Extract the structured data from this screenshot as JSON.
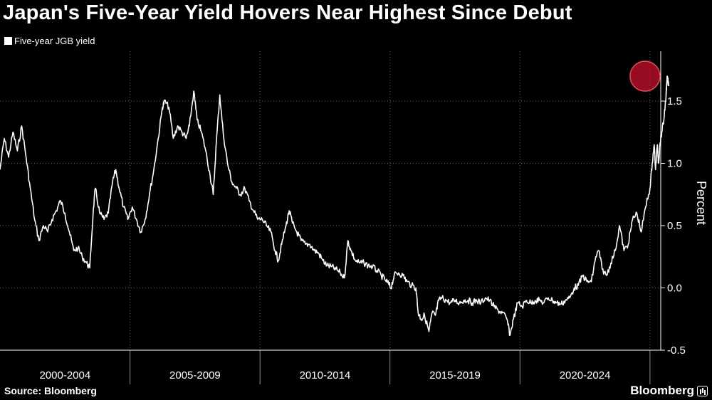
{
  "chart_data": {
    "type": "line",
    "title": "Japan's Five-Year Yield Hovers Near Highest Since Debut",
    "ylabel": "Percent",
    "xlabel": "",
    "ylim": [
      -0.5,
      1.9
    ],
    "xlim": [
      "2000-01-01",
      "2025-06-01"
    ],
    "yticks": [
      "1.5",
      "1.0",
      "0.5",
      "0.0",
      "-0.5"
    ],
    "ytick_values": [
      1.5,
      1.0,
      0.5,
      0.0,
      -0.5
    ],
    "categories": [
      "2000-2004",
      "2005-2009",
      "2010-2014",
      "2015-2019",
      "2020-2024"
    ],
    "category_ranges": [
      [
        "2000-01-01",
        "2005-01-01"
      ],
      [
        "2005-01-01",
        "2010-01-01"
      ],
      [
        "2010-01-01",
        "2015-01-01"
      ],
      [
        "2015-01-01",
        "2020-01-01"
      ],
      [
        "2020-01-01",
        "2025-01-01"
      ]
    ],
    "grid": true,
    "legend_position": "top-left",
    "highlight": {
      "x": "2025-04-01",
      "y": 1.7,
      "color": "#c8102e"
    },
    "series": [
      {
        "name": "Five-year JGB yield",
        "color": "#ffffff",
        "points": [
          [
            "2000-01-01",
            0.95
          ],
          [
            "2000-03-01",
            1.2
          ],
          [
            "2000-05-01",
            1.05
          ],
          [
            "2000-07-01",
            1.25
          ],
          [
            "2000-09-01",
            1.1
          ],
          [
            "2000-11-01",
            1.3
          ],
          [
            "2001-01-01",
            1.05
          ],
          [
            "2001-03-01",
            0.8
          ],
          [
            "2001-05-01",
            0.55
          ],
          [
            "2001-07-01",
            0.38
          ],
          [
            "2001-09-01",
            0.5
          ],
          [
            "2001-11-01",
            0.45
          ],
          [
            "2002-01-01",
            0.55
          ],
          [
            "2002-03-01",
            0.62
          ],
          [
            "2002-05-01",
            0.7
          ],
          [
            "2002-07-01",
            0.6
          ],
          [
            "2002-09-01",
            0.45
          ],
          [
            "2002-11-01",
            0.3
          ],
          [
            "2003-01-01",
            0.32
          ],
          [
            "2003-03-01",
            0.25
          ],
          [
            "2003-05-01",
            0.2
          ],
          [
            "2003-06-15",
            0.16
          ],
          [
            "2003-08-01",
            0.6
          ],
          [
            "2003-09-01",
            0.8
          ],
          [
            "2003-11-01",
            0.6
          ],
          [
            "2004-01-01",
            0.55
          ],
          [
            "2004-03-01",
            0.6
          ],
          [
            "2004-05-01",
            0.85
          ],
          [
            "2004-06-15",
            0.95
          ],
          [
            "2004-08-01",
            0.8
          ],
          [
            "2004-10-01",
            0.65
          ],
          [
            "2004-12-01",
            0.55
          ],
          [
            "2005-02-01",
            0.65
          ],
          [
            "2005-04-01",
            0.55
          ],
          [
            "2005-06-01",
            0.45
          ],
          [
            "2005-08-01",
            0.55
          ],
          [
            "2005-10-01",
            0.75
          ],
          [
            "2005-12-01",
            0.95
          ],
          [
            "2006-02-01",
            1.2
          ],
          [
            "2006-04-01",
            1.45
          ],
          [
            "2006-05-01",
            1.5
          ],
          [
            "2006-07-01",
            1.45
          ],
          [
            "2006-09-01",
            1.2
          ],
          [
            "2006-11-01",
            1.3
          ],
          [
            "2007-01-01",
            1.25
          ],
          [
            "2007-03-01",
            1.2
          ],
          [
            "2007-04-15",
            1.3
          ],
          [
            "2007-06-15",
            1.58
          ],
          [
            "2007-08-01",
            1.35
          ],
          [
            "2007-10-01",
            1.25
          ],
          [
            "2007-12-01",
            1.1
          ],
          [
            "2008-02-01",
            0.9
          ],
          [
            "2008-03-15",
            0.75
          ],
          [
            "2008-05-01",
            1.2
          ],
          [
            "2008-06-15",
            1.55
          ],
          [
            "2008-08-01",
            1.25
          ],
          [
            "2008-10-01",
            1.0
          ],
          [
            "2008-12-01",
            0.85
          ],
          [
            "2009-02-01",
            0.8
          ],
          [
            "2009-04-01",
            0.75
          ],
          [
            "2009-06-01",
            0.8
          ],
          [
            "2009-08-01",
            0.7
          ],
          [
            "2009-10-01",
            0.62
          ],
          [
            "2009-12-01",
            0.55
          ],
          [
            "2010-02-01",
            0.55
          ],
          [
            "2010-04-01",
            0.5
          ],
          [
            "2010-06-01",
            0.45
          ],
          [
            "2010-08-01",
            0.3
          ],
          [
            "2010-09-15",
            0.22
          ],
          [
            "2010-11-01",
            0.35
          ],
          [
            "2011-01-01",
            0.5
          ],
          [
            "2011-02-15",
            0.62
          ],
          [
            "2011-04-01",
            0.52
          ],
          [
            "2011-06-01",
            0.45
          ],
          [
            "2011-08-01",
            0.38
          ],
          [
            "2011-10-01",
            0.35
          ],
          [
            "2011-12-01",
            0.35
          ],
          [
            "2012-02-01",
            0.3
          ],
          [
            "2012-04-01",
            0.28
          ],
          [
            "2012-06-01",
            0.22
          ],
          [
            "2012-08-01",
            0.18
          ],
          [
            "2012-10-01",
            0.17
          ],
          [
            "2012-12-01",
            0.15
          ],
          [
            "2013-02-01",
            0.12
          ],
          [
            "2013-04-01",
            0.08
          ],
          [
            "2013-05-20",
            0.38
          ],
          [
            "2013-07-01",
            0.3
          ],
          [
            "2013-09-01",
            0.22
          ],
          [
            "2013-11-01",
            0.2
          ],
          [
            "2014-01-01",
            0.2
          ],
          [
            "2014-03-01",
            0.18
          ],
          [
            "2014-05-01",
            0.17
          ],
          [
            "2014-07-01",
            0.14
          ],
          [
            "2014-09-01",
            0.1
          ],
          [
            "2014-11-01",
            0.06
          ],
          [
            "2014-12-15",
            0.03
          ],
          [
            "2015-01-15",
            0.0
          ],
          [
            "2015-03-01",
            0.1
          ],
          [
            "2015-05-01",
            0.12
          ],
          [
            "2015-07-01",
            0.1
          ],
          [
            "2015-09-01",
            0.05
          ],
          [
            "2015-11-01",
            0.02
          ],
          [
            "2016-01-01",
            0.0
          ],
          [
            "2016-02-01",
            -0.2
          ],
          [
            "2016-03-15",
            -0.25
          ],
          [
            "2016-05-01",
            -0.22
          ],
          [
            "2016-07-01",
            -0.35
          ],
          [
            "2016-08-15",
            -0.2
          ],
          [
            "2016-10-01",
            -0.22
          ],
          [
            "2016-11-15",
            -0.1
          ],
          [
            "2017-01-01",
            -0.08
          ],
          [
            "2017-03-01",
            -0.1
          ],
          [
            "2017-05-01",
            -0.12
          ],
          [
            "2017-07-01",
            -0.1
          ],
          [
            "2017-09-01",
            -0.12
          ],
          [
            "2017-11-01",
            -0.1
          ],
          [
            "2018-01-01",
            -0.1
          ],
          [
            "2018-03-01",
            -0.12
          ],
          [
            "2018-05-01",
            -0.1
          ],
          [
            "2018-07-01",
            -0.12
          ],
          [
            "2018-09-01",
            -0.08
          ],
          [
            "2018-11-01",
            -0.1
          ],
          [
            "2019-01-01",
            -0.15
          ],
          [
            "2019-03-01",
            -0.18
          ],
          [
            "2019-05-01",
            -0.2
          ],
          [
            "2019-07-01",
            -0.25
          ],
          [
            "2019-08-15",
            -0.38
          ],
          [
            "2019-10-01",
            -0.25
          ],
          [
            "2019-12-01",
            -0.12
          ],
          [
            "2020-02-01",
            -0.15
          ],
          [
            "2020-04-01",
            -0.1
          ],
          [
            "2020-06-01",
            -0.12
          ],
          [
            "2020-08-01",
            -0.1
          ],
          [
            "2020-10-01",
            -0.1
          ],
          [
            "2020-12-01",
            -0.12
          ],
          [
            "2021-02-01",
            -0.08
          ],
          [
            "2021-04-01",
            -0.1
          ],
          [
            "2021-06-01",
            -0.12
          ],
          [
            "2021-08-01",
            -0.13
          ],
          [
            "2021-10-01",
            -0.1
          ],
          [
            "2021-12-01",
            -0.08
          ],
          [
            "2022-02-01",
            0.0
          ],
          [
            "2022-04-01",
            0.02
          ],
          [
            "2022-06-01",
            0.1
          ],
          [
            "2022-08-01",
            0.05
          ],
          [
            "2022-10-01",
            0.05
          ],
          [
            "2022-12-01",
            0.25
          ],
          [
            "2023-01-15",
            0.3
          ],
          [
            "2023-03-01",
            0.15
          ],
          [
            "2023-05-01",
            0.1
          ],
          [
            "2023-07-01",
            0.2
          ],
          [
            "2023-09-01",
            0.3
          ],
          [
            "2023-11-01",
            0.5
          ],
          [
            "2024-01-01",
            0.3
          ],
          [
            "2024-03-01",
            0.35
          ],
          [
            "2024-05-01",
            0.55
          ],
          [
            "2024-07-01",
            0.6
          ],
          [
            "2024-09-01",
            0.45
          ],
          [
            "2024-11-01",
            0.65
          ],
          [
            "2025-01-01",
            0.8
          ],
          [
            "2025-02-01",
            1.0
          ],
          [
            "2025-03-01",
            1.15
          ],
          [
            "2025-03-20",
            0.95
          ],
          [
            "2025-04-15",
            1.15
          ],
          [
            "2025-05-01",
            1.0
          ],
          [
            "2025-05-20",
            1.15
          ],
          [
            "2025-06-15",
            1.25
          ],
          [
            "2025-07-15",
            1.35
          ],
          [
            "2025-08-15",
            1.55
          ],
          [
            "2025-09-01",
            1.7
          ],
          [
            "2025-09-20",
            1.62
          ]
        ]
      }
    ]
  },
  "legend": {
    "label": "Five-year JGB yield"
  },
  "footer": {
    "source": "Source: Bloomberg",
    "brand": "Bloomberg"
  }
}
